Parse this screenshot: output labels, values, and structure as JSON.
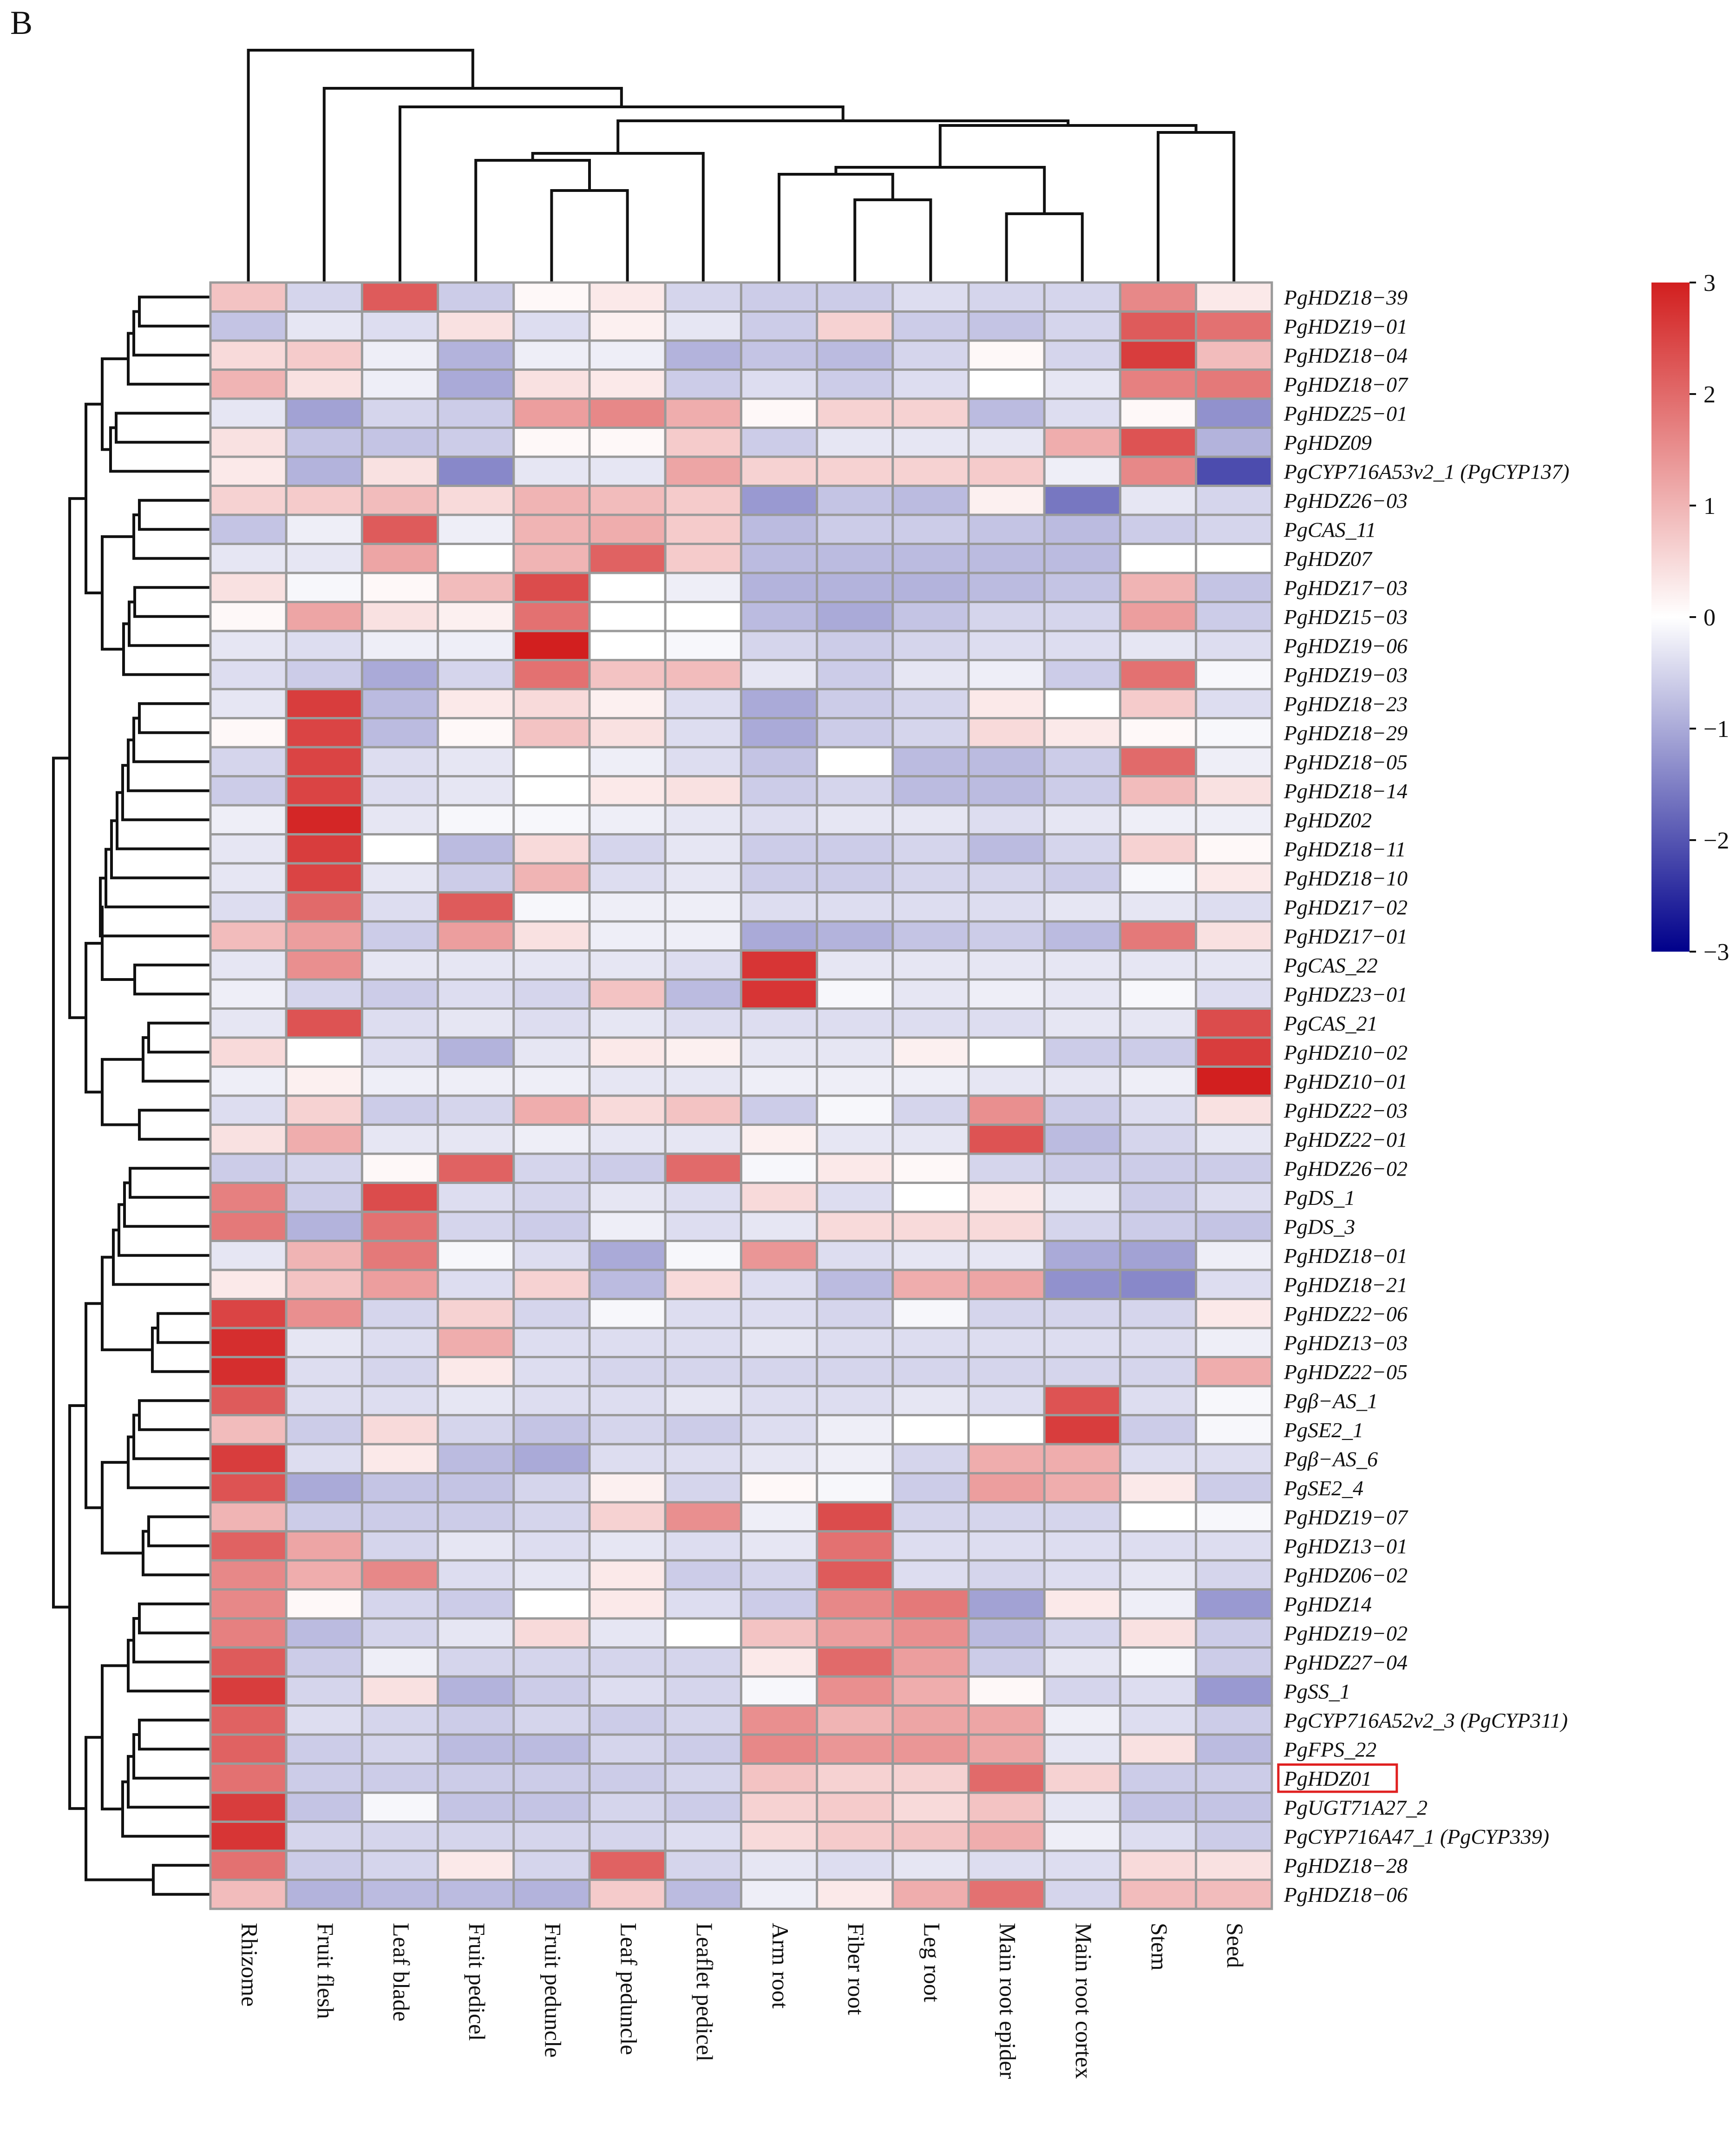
{
  "panel_label": "B",
  "chart_data": {
    "type": "heatmap",
    "title": "",
    "columns": [
      "Rhizome",
      "Fruit flesh",
      "Leaf blade",
      "Fruit pedicel",
      "Fruit peduncle",
      "Leaf peduncle",
      "Leaflet pedicel",
      "Arm root",
      "Fiber root",
      "Leg root",
      "Main root epider",
      "Main root cortex",
      "Stem",
      "Seed"
    ],
    "rows": [
      "PgHDZ18−39",
      "PgHDZ19−01",
      "PgHDZ18−04",
      "PgHDZ18−07",
      "PgHDZ25−01",
      "PgHDZ09",
      "PgCYP716A53v2_1 (PgCYP137)",
      "PgHDZ26−03",
      "PgCAS_11",
      "PgHDZ07",
      "PgHDZ17−03",
      "PgHDZ15−03",
      "PgHDZ19−06",
      "PgHDZ19−03",
      "PgHDZ18−23",
      "PgHDZ18−29",
      "PgHDZ18−05",
      "PgHDZ18−14",
      "PgHDZ02",
      "PgHDZ18−11",
      "PgHDZ18−10",
      "PgHDZ17−02",
      "PgHDZ17−01",
      "PgCAS_22",
      "PgHDZ23−01",
      "PgCAS_21",
      "PgHDZ10−02",
      "PgHDZ10−01",
      "PgHDZ22−03",
      "PgHDZ22−01",
      "PgHDZ26−02",
      "PgDS_1",
      "PgDS_3",
      "PgHDZ18−01",
      "PgHDZ18−21",
      "PgHDZ22−06",
      "PgHDZ13−03",
      "PgHDZ22−05",
      "Pgβ−AS_1",
      "PgSE2_1",
      "Pgβ−AS_6",
      "PgSE2_4",
      "PgHDZ19−07",
      "PgHDZ13−01",
      "PgHDZ06−02",
      "PgHDZ14",
      "PgHDZ19−02",
      "PgHDZ27−04",
      "PgSS_1",
      "PgCYP716A52v2_3 (PgCYP311)",
      "PgFPS_22",
      "PgHDZ01",
      "PgUGT71A27_2",
      "PgCYP716A47_1 (PgCYP339)",
      "PgHDZ18−28",
      "PgHDZ18−06"
    ],
    "values": [
      [
        0.8,
        -0.5,
        2.2,
        -0.6,
        0.1,
        0.3,
        -0.5,
        -0.6,
        -0.6,
        -0.4,
        -0.5,
        -0.5,
        1.6,
        0.3
      ],
      [
        -0.7,
        -0.3,
        -0.4,
        0.4,
        -0.4,
        0.2,
        -0.3,
        -0.6,
        0.6,
        -0.6,
        -0.7,
        -0.5,
        2.2,
        1.9
      ],
      [
        0.5,
        0.7,
        -0.2,
        -0.9,
        -0.2,
        -0.2,
        -0.9,
        -0.7,
        -0.8,
        -0.5,
        0.1,
        -0.5,
        2.6,
        0.9
      ],
      [
        1.0,
        0.4,
        -0.2,
        -1.0,
        0.4,
        0.3,
        -0.6,
        -0.4,
        -0.6,
        -0.4,
        0.0,
        -0.3,
        1.7,
        1.8
      ],
      [
        -0.3,
        -1.1,
        -0.5,
        -0.6,
        1.3,
        1.6,
        1.1,
        0.1,
        0.6,
        0.6,
        -0.8,
        -0.4,
        0.1,
        -1.3
      ],
      [
        0.4,
        -0.7,
        -0.7,
        -0.6,
        0.1,
        0.1,
        0.7,
        -0.6,
        -0.3,
        -0.3,
        -0.3,
        1.1,
        2.3,
        -0.9
      ],
      [
        0.3,
        -0.9,
        0.4,
        -1.4,
        -0.3,
        -0.3,
        1.2,
        0.6,
        0.6,
        0.6,
        0.7,
        -0.2,
        1.6,
        -2.1
      ],
      [
        0.6,
        0.7,
        0.9,
        0.5,
        1.0,
        0.9,
        0.7,
        -1.2,
        -0.7,
        -0.8,
        0.2,
        -1.6,
        -0.3,
        -0.5
      ],
      [
        -0.7,
        -0.2,
        2.2,
        -0.2,
        1.0,
        1.1,
        0.7,
        -0.8,
        -0.6,
        -0.6,
        -0.7,
        -0.8,
        -0.6,
        -0.5
      ],
      [
        -0.3,
        -0.3,
        1.2,
        0.0,
        1.0,
        2.1,
        0.7,
        -0.8,
        -0.8,
        -0.8,
        -0.8,
        -0.8,
        0.0,
        0.0
      ],
      [
        0.4,
        -0.1,
        0.1,
        0.9,
        2.4,
        0.0,
        -0.2,
        -0.9,
        -0.9,
        -0.9,
        -0.8,
        -0.7,
        1.0,
        -0.7
      ],
      [
        0.1,
        1.2,
        0.4,
        0.2,
        1.9,
        0.0,
        0.0,
        -0.8,
        -1.0,
        -0.7,
        -0.5,
        -0.5,
        1.3,
        -0.6
      ],
      [
        -0.3,
        -0.4,
        -0.2,
        -0.2,
        3.0,
        0.0,
        -0.1,
        -0.5,
        -0.6,
        -0.5,
        -0.4,
        -0.4,
        -0.3,
        -0.4
      ],
      [
        -0.4,
        -0.6,
        -1.0,
        -0.5,
        1.9,
        0.8,
        0.9,
        -0.3,
        -0.6,
        -0.3,
        -0.2,
        -0.6,
        1.9,
        -0.1
      ],
      [
        -0.3,
        2.6,
        -0.8,
        0.3,
        0.5,
        0.2,
        -0.4,
        -1.0,
        -0.6,
        -0.5,
        0.3,
        0.0,
        0.7,
        -0.4
      ],
      [
        0.1,
        2.5,
        -0.8,
        0.1,
        0.8,
        0.4,
        -0.4,
        -1.0,
        -0.6,
        -0.5,
        0.5,
        0.3,
        0.1,
        -0.1
      ],
      [
        -0.5,
        2.5,
        -0.4,
        -0.3,
        0.0,
        -0.2,
        -0.4,
        -0.7,
        0.0,
        -0.8,
        -0.8,
        -0.6,
        2.0,
        -0.2
      ],
      [
        -0.6,
        2.5,
        -0.4,
        -0.3,
        0.0,
        0.3,
        0.4,
        -0.6,
        -0.5,
        -0.8,
        -0.8,
        -0.6,
        0.9,
        0.4
      ],
      [
        -0.2,
        2.9,
        -0.3,
        -0.1,
        -0.1,
        -0.2,
        -0.3,
        -0.4,
        -0.3,
        -0.3,
        -0.4,
        -0.3,
        -0.2,
        -0.2
      ],
      [
        -0.3,
        2.6,
        0.0,
        -0.8,
        0.5,
        -0.5,
        -0.3,
        -0.6,
        -0.6,
        -0.5,
        -0.8,
        -0.5,
        0.6,
        0.1
      ],
      [
        -0.3,
        2.5,
        -0.3,
        -0.6,
        1.0,
        -0.4,
        -0.3,
        -0.6,
        -0.6,
        -0.5,
        -0.5,
        -0.6,
        -0.1,
        0.3
      ],
      [
        -0.4,
        2.0,
        -0.4,
        2.2,
        -0.1,
        -0.2,
        -0.2,
        -0.4,
        -0.4,
        -0.4,
        -0.4,
        -0.3,
        -0.3,
        -0.4
      ],
      [
        0.9,
        1.3,
        -0.6,
        1.3,
        0.4,
        -0.2,
        -0.2,
        -1.0,
        -0.9,
        -0.7,
        -0.6,
        -0.8,
        1.8,
        0.4
      ],
      [
        -0.3,
        1.5,
        -0.3,
        -0.3,
        -0.3,
        -0.3,
        -0.4,
        2.7,
        -0.3,
        -0.3,
        -0.3,
        -0.3,
        -0.3,
        -0.3
      ],
      [
        -0.2,
        -0.5,
        -0.6,
        -0.4,
        -0.5,
        0.8,
        -0.8,
        2.7,
        -0.1,
        -0.3,
        -0.2,
        -0.3,
        -0.1,
        -0.4
      ],
      [
        -0.3,
        2.3,
        -0.4,
        -0.3,
        -0.4,
        -0.3,
        -0.4,
        -0.4,
        -0.4,
        -0.4,
        -0.4,
        -0.3,
        -0.3,
        2.4
      ],
      [
        0.5,
        0.0,
        -0.4,
        -0.9,
        -0.3,
        0.3,
        0.2,
        -0.3,
        -0.3,
        0.2,
        0.0,
        -0.6,
        -0.6,
        2.6
      ],
      [
        -0.2,
        0.2,
        -0.2,
        -0.2,
        -0.2,
        -0.3,
        -0.3,
        -0.2,
        -0.2,
        -0.2,
        -0.3,
        -0.3,
        -0.2,
        3.0
      ],
      [
        -0.4,
        0.6,
        -0.6,
        -0.5,
        1.1,
        0.5,
        0.8,
        -0.6,
        -0.1,
        -0.5,
        1.5,
        -0.6,
        -0.4,
        0.4
      ],
      [
        0.4,
        1.1,
        -0.3,
        -0.3,
        -0.2,
        -0.3,
        -0.3,
        0.2,
        -0.3,
        -0.3,
        2.3,
        -0.8,
        -0.5,
        -0.3
      ],
      [
        -0.6,
        -0.5,
        0.1,
        2.1,
        -0.5,
        -0.6,
        2.0,
        -0.1,
        0.3,
        0.1,
        -0.5,
        -0.6,
        -0.6,
        -0.6
      ],
      [
        1.7,
        -0.6,
        2.4,
        -0.4,
        -0.5,
        -0.3,
        -0.4,
        0.5,
        -0.4,
        0.0,
        0.3,
        -0.3,
        -0.6,
        -0.4
      ],
      [
        1.8,
        -0.9,
        1.9,
        -0.5,
        -0.6,
        -0.2,
        -0.4,
        -0.3,
        0.5,
        0.5,
        0.5,
        -0.5,
        -0.6,
        -0.7
      ],
      [
        -0.3,
        1.0,
        1.8,
        -0.1,
        -0.4,
        -1.0,
        -0.1,
        1.4,
        -0.4,
        -0.3,
        -0.3,
        -1.0,
        -1.1,
        -0.2
      ],
      [
        0.3,
        0.8,
        1.3,
        -0.4,
        0.6,
        -0.8,
        0.5,
        -0.4,
        -0.8,
        1.1,
        1.2,
        -1.3,
        -1.4,
        -0.4
      ],
      [
        2.5,
        1.5,
        -0.5,
        0.6,
        -0.5,
        -0.1,
        -0.4,
        -0.4,
        -0.5,
        -0.1,
        -0.5,
        -0.5,
        -0.5,
        0.3
      ],
      [
        2.8,
        -0.3,
        -0.4,
        1.1,
        -0.4,
        -0.4,
        -0.4,
        -0.3,
        -0.4,
        -0.4,
        -0.4,
        -0.4,
        -0.4,
        -0.2
      ],
      [
        2.8,
        -0.4,
        -0.5,
        0.3,
        -0.4,
        -0.5,
        -0.5,
        -0.5,
        -0.5,
        -0.5,
        -0.5,
        -0.5,
        -0.5,
        1.1
      ],
      [
        2.2,
        -0.4,
        -0.4,
        -0.3,
        -0.4,
        -0.4,
        -0.3,
        -0.4,
        -0.4,
        -0.3,
        -0.4,
        2.3,
        -0.4,
        -0.1
      ],
      [
        0.9,
        -0.6,
        0.5,
        -0.5,
        -0.7,
        -0.5,
        -0.6,
        -0.4,
        -0.2,
        0.0,
        0.0,
        2.6,
        -0.6,
        -0.1
      ],
      [
        2.6,
        -0.4,
        0.3,
        -0.8,
        -1.0,
        -0.4,
        -0.4,
        -0.3,
        -0.2,
        -0.5,
        1.1,
        1.1,
        -0.4,
        -0.4
      ],
      [
        2.3,
        -1.0,
        -0.7,
        -0.7,
        -0.5,
        0.2,
        -0.5,
        0.1,
        -0.1,
        -0.6,
        1.3,
        1.1,
        0.3,
        -0.6
      ],
      [
        1.0,
        -0.6,
        -0.6,
        -0.6,
        -0.5,
        0.6,
        1.5,
        -0.2,
        2.4,
        -0.5,
        -0.5,
        -0.5,
        0.0,
        -0.1
      ],
      [
        2.1,
        1.2,
        -0.5,
        -0.3,
        -0.4,
        -0.3,
        -0.4,
        -0.3,
        1.9,
        -0.4,
        -0.4,
        -0.4,
        -0.4,
        -0.4
      ],
      [
        1.6,
        1.1,
        1.6,
        -0.4,
        -0.3,
        0.3,
        -0.6,
        -0.5,
        2.2,
        -0.4,
        -0.5,
        -0.4,
        -0.3,
        -0.5
      ],
      [
        1.6,
        0.1,
        -0.5,
        -0.6,
        0.0,
        0.3,
        -0.4,
        -0.6,
        1.6,
        1.8,
        -1.1,
        0.3,
        -0.2,
        -1.2
      ],
      [
        1.7,
        -0.8,
        -0.5,
        -0.3,
        0.5,
        -0.3,
        0.0,
        0.8,
        1.3,
        1.5,
        -0.8,
        -0.5,
        0.4,
        -0.6
      ],
      [
        2.2,
        -0.6,
        -0.2,
        -0.5,
        -0.5,
        -0.5,
        -0.5,
        0.3,
        2.0,
        1.3,
        -0.6,
        -0.3,
        -0.1,
        -0.6
      ],
      [
        2.6,
        -0.5,
        0.4,
        -0.9,
        -0.6,
        -0.4,
        -0.5,
        -0.1,
        1.5,
        1.1,
        0.1,
        -0.5,
        -0.4,
        -1.2
      ],
      [
        2.1,
        -0.4,
        -0.5,
        -0.6,
        -0.5,
        -0.6,
        -0.5,
        1.5,
        1.0,
        1.2,
        1.2,
        -0.2,
        -0.4,
        -0.6
      ],
      [
        2.1,
        -0.6,
        -0.5,
        -0.8,
        -0.8,
        -0.5,
        -0.6,
        1.6,
        1.4,
        1.4,
        1.2,
        -0.3,
        0.4,
        -0.8
      ],
      [
        1.9,
        -0.6,
        -0.6,
        -0.6,
        -0.6,
        -0.6,
        -0.5,
        0.8,
        0.6,
        0.6,
        2.0,
        0.6,
        -0.6,
        -0.6
      ],
      [
        2.6,
        -0.7,
        -0.1,
        -0.7,
        -0.7,
        -0.5,
        -0.6,
        0.6,
        0.7,
        0.5,
        0.8,
        -0.3,
        -0.7,
        -0.7
      ],
      [
        2.7,
        -0.5,
        -0.5,
        -0.5,
        -0.5,
        -0.5,
        -0.4,
        0.5,
        0.7,
        0.8,
        1.1,
        -0.2,
        -0.4,
        -0.6
      ],
      [
        1.9,
        -0.6,
        -0.5,
        0.3,
        -0.5,
        2.1,
        -0.5,
        -0.3,
        -0.4,
        -0.3,
        -0.4,
        -0.4,
        0.5,
        0.4
      ],
      [
        0.9,
        -0.9,
        -0.8,
        -0.8,
        -0.9,
        0.7,
        -0.8,
        -0.2,
        0.3,
        1.1,
        1.9,
        -0.5,
        0.9,
        0.9
      ]
    ],
    "color_scale": {
      "min": -3,
      "max": 3,
      "ticks": [
        "3",
        "2",
        "1",
        "0",
        "−1",
        "−2",
        "−3"
      ],
      "low_color": "#00008b",
      "mid_color": "#ffffff",
      "high_color": "#d21f1f"
    },
    "highlighted_row": "PgHDZ01",
    "highlight_color": "#e02020",
    "row_dendrogram": true,
    "column_dendrogram": true
  }
}
